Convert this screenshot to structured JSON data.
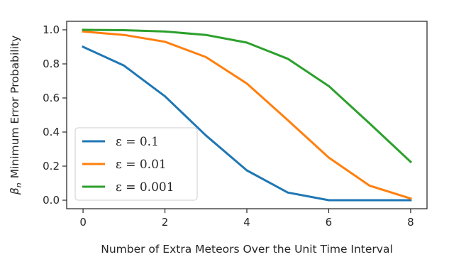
{
  "chart_data": {
    "type": "line",
    "xlabel": "Number of Extra Meteors Over the Unit Time Interval",
    "ylabel_symbol": "β",
    "ylabel_subscript": "n",
    "ylabel_text": "Minimum Error Probability",
    "xlim": [
      -0.4,
      8.4
    ],
    "ylim": [
      -0.05,
      1.05
    ],
    "x_ticks": [
      "0",
      "2",
      "4",
      "6",
      "8"
    ],
    "y_ticks": [
      "0.0",
      "0.2",
      "0.4",
      "0.6",
      "0.8",
      "1.0"
    ],
    "grid": false,
    "legend_position": "lower-left",
    "x": [
      0,
      1,
      2,
      3,
      4,
      5,
      6,
      7,
      8
    ],
    "series": [
      {
        "name": "ε = 0.1",
        "color": "#1f77b4",
        "values": [
          0.9,
          0.79,
          0.61,
          0.38,
          0.175,
          0.045,
          0.0,
          0.0,
          0.0
        ]
      },
      {
        "name": "ε = 0.01",
        "color": "#ff7f0e",
        "values": [
          0.99,
          0.97,
          0.93,
          0.84,
          0.685,
          0.47,
          0.25,
          0.085,
          0.01
        ]
      },
      {
        "name": "ε = 0.001",
        "color": "#2ca02c",
        "values": [
          1.0,
          0.998,
          0.99,
          0.97,
          0.925,
          0.83,
          0.67,
          0.45,
          0.225
        ]
      }
    ]
  }
}
